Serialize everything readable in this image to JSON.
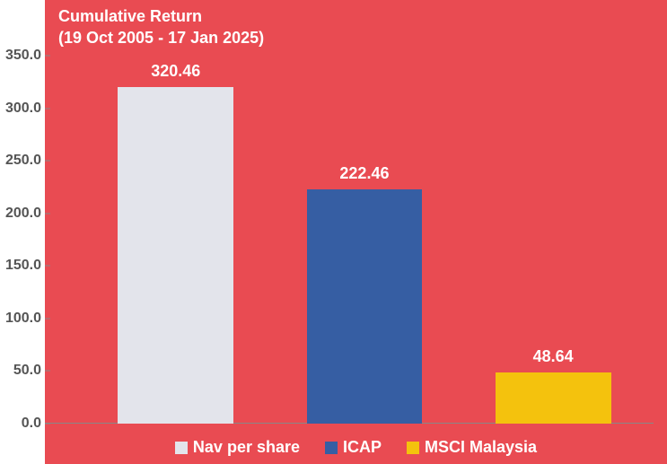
{
  "chart": {
    "type": "bar",
    "title_line1": "Cumulative Return",
    "title_line2": "(19 Oct 2005 - 17 Jan 2025)",
    "title_fontsize": 18,
    "title_color": "#ffffff",
    "background_color": "#e94b52",
    "plot_background_color": "#e94b52",
    "axis_color": "#888888",
    "tick_label_color": "#555555",
    "tick_fontsize": 16,
    "bar_label_color": "#ffffff",
    "bar_label_fontsize": 18,
    "legend_fontsize": 18,
    "legend_color": "#ffffff",
    "ylim": [
      0,
      350
    ],
    "ytick_step": 50,
    "yticks": [
      "0.0",
      "50.0",
      "100.0",
      "150.0",
      "200.0",
      "250.0",
      "300.0",
      "350.0"
    ],
    "bar_width_pct": 19,
    "series": [
      {
        "name": "Nav per share",
        "value": 320.46,
        "value_label": "320.46",
        "color": "#e3e4eb",
        "left_pct": 12
      },
      {
        "name": "ICAP",
        "value": 222.46,
        "value_label": "222.46",
        "color": "#365ea3",
        "left_pct": 43
      },
      {
        "name": "MSCI Malaysia",
        "value": 48.64,
        "value_label": "48.64",
        "color": "#f4c20d",
        "left_pct": 74
      }
    ]
  }
}
